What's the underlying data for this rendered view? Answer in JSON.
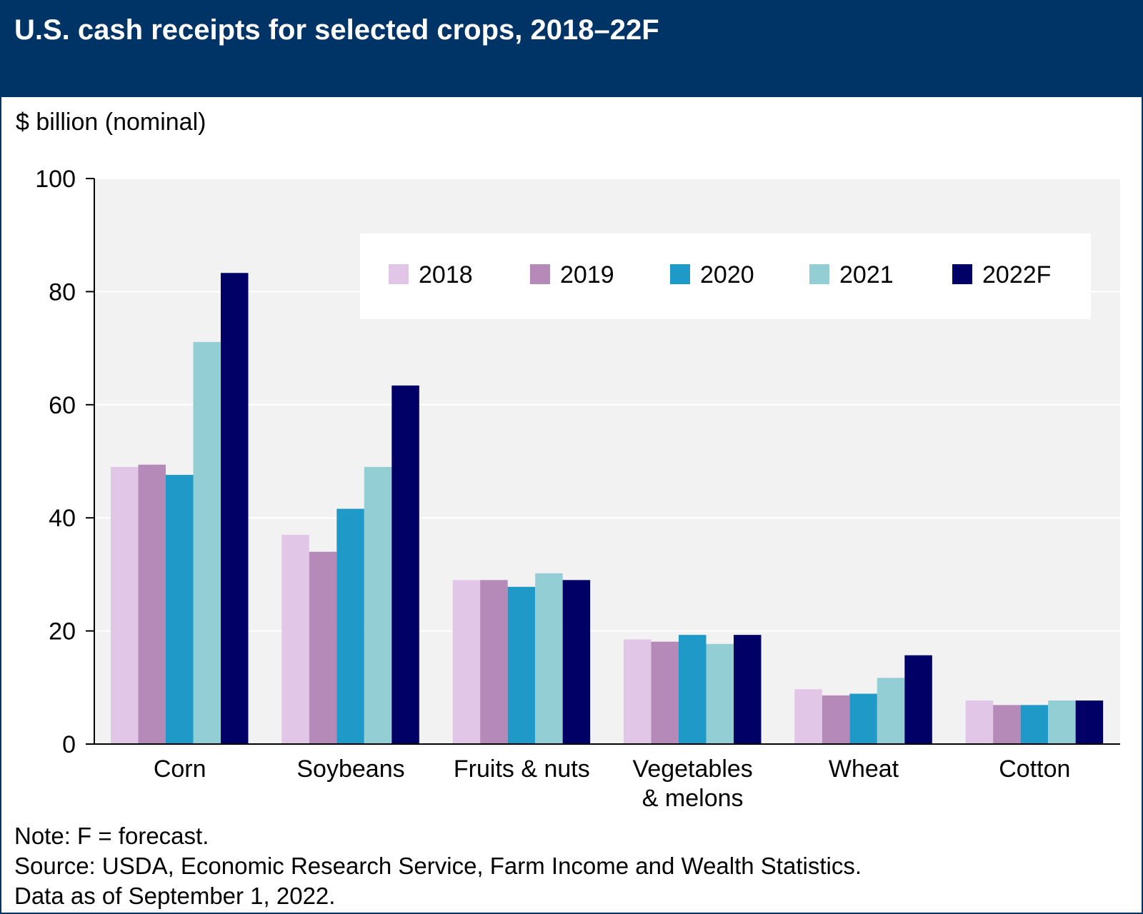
{
  "title": "U.S. cash receipts for selected crops, 2018–22F",
  "unit_label": "$ billion (nominal)",
  "colors": {
    "header_bg": "#003366",
    "plot_bg": "#f2f2f2",
    "gridline": "#ffffff",
    "series": [
      "#e2c6e8",
      "#b589b8",
      "#1f9ac8",
      "#92ced3",
      "#000066"
    ]
  },
  "chart_data": {
    "type": "bar",
    "categories": [
      "Corn",
      "Soybeans",
      "Fruits & nuts",
      "Vegetables & melons",
      "Wheat",
      "Cotton"
    ],
    "category_lines": [
      [
        "Corn"
      ],
      [
        "Soybeans"
      ],
      [
        "Fruits & nuts"
      ],
      [
        "Vegetables",
        "& melons"
      ],
      [
        "Wheat"
      ],
      [
        "Cotton"
      ]
    ],
    "series": [
      {
        "name": "2018",
        "values": [
          49,
          37,
          29,
          18.5,
          9.7,
          7.7
        ]
      },
      {
        "name": "2019",
        "values": [
          49.4,
          34,
          29,
          18.1,
          8.6,
          6.9
        ]
      },
      {
        "name": "2020",
        "values": [
          47.6,
          41.6,
          27.8,
          19.3,
          8.9,
          6.9
        ]
      },
      {
        "name": "2021",
        "values": [
          71.1,
          49,
          30.2,
          17.7,
          11.7,
          7.7
        ]
      },
      {
        "name": "2022F",
        "values": [
          83.3,
          63.4,
          29,
          19.3,
          15.7,
          7.7
        ]
      }
    ],
    "ylim": [
      0,
      100
    ],
    "yticks": [
      0,
      20,
      40,
      60,
      80,
      100
    ],
    "xlabel": "",
    "ylabel": "$ billion (nominal)",
    "legend": "top-right",
    "grid": true
  },
  "notes": [
    "Note: F = forecast.",
    "Source: USDA, Economic Research Service, Farm Income and Wealth Statistics.",
    "Data as of September 1, 2022."
  ]
}
